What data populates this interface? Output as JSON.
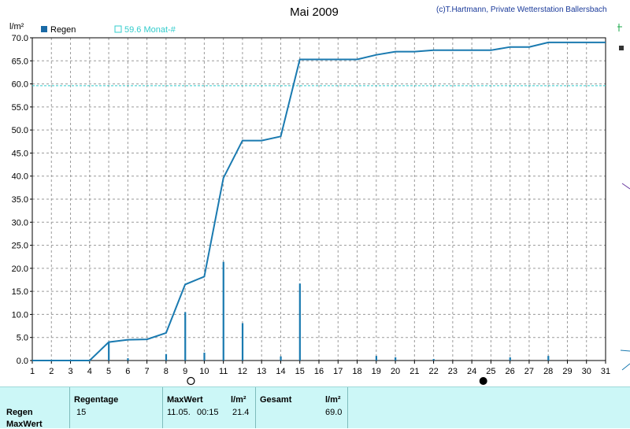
{
  "chart_data": {
    "type": "line",
    "title": "Mai 2009",
    "copyright": "(c)T.Hartmann, Private Wetterstation Ballersbach",
    "ylabel": "l/m²",
    "xlim": [
      1,
      31
    ],
    "ylim": [
      0,
      70
    ],
    "x_ticks": [
      1,
      2,
      3,
      4,
      5,
      6,
      7,
      8,
      9,
      10,
      11,
      12,
      13,
      14,
      15,
      16,
      17,
      18,
      19,
      20,
      21,
      22,
      23,
      24,
      25,
      26,
      27,
      28,
      29,
      30,
      31
    ],
    "y_ticks": [
      "0.0",
      "5.0",
      "10.0",
      "15.0",
      "20.0",
      "25.0",
      "30.0",
      "35.0",
      "40.0",
      "45.0",
      "50.0",
      "55.0",
      "60.0",
      "65.0",
      "70.0"
    ],
    "grid": true,
    "legend": [
      {
        "name": "Regen",
        "color": "#1a6aa6"
      },
      {
        "name": "59.6 Monat-#",
        "color": "#33cccc"
      }
    ],
    "reference_line": {
      "value": 59.6,
      "color": "#33cccc"
    },
    "cumulative_series": {
      "name": "Regen",
      "color": "#1a7ab0",
      "points": [
        [
          1,
          0
        ],
        [
          2,
          0
        ],
        [
          3,
          0
        ],
        [
          4,
          0
        ],
        [
          5,
          4.0
        ],
        [
          6,
          4.5
        ],
        [
          7,
          4.6
        ],
        [
          8,
          6.0
        ],
        [
          9,
          16.5
        ],
        [
          10,
          18.2
        ],
        [
          11,
          39.6
        ],
        [
          12,
          47.7
        ],
        [
          13,
          47.7
        ],
        [
          14,
          48.6
        ],
        [
          15,
          65.3
        ],
        [
          16,
          65.3
        ],
        [
          17,
          65.3
        ],
        [
          18,
          65.3
        ],
        [
          19,
          66.3
        ],
        [
          20,
          67.0
        ],
        [
          21,
          67.0
        ],
        [
          22,
          67.3
        ],
        [
          23,
          67.3
        ],
        [
          24,
          67.3
        ],
        [
          25,
          67.3
        ],
        [
          26,
          68.0
        ],
        [
          27,
          68.0
        ],
        [
          28,
          69.0
        ],
        [
          29,
          69.0
        ],
        [
          30,
          69.0
        ],
        [
          31,
          69.0
        ]
      ]
    },
    "daily_bars": {
      "color": "#1a7ab0",
      "points": [
        [
          5,
          4.0
        ],
        [
          6,
          0.5
        ],
        [
          8,
          1.4
        ],
        [
          9,
          10.5
        ],
        [
          10,
          1.7
        ],
        [
          11,
          21.4
        ],
        [
          12,
          8.1
        ],
        [
          14,
          0.9
        ],
        [
          15,
          16.7
        ],
        [
          19,
          1.0
        ],
        [
          20,
          0.7
        ],
        [
          22,
          0.3
        ],
        [
          26,
          0.7
        ],
        [
          28,
          1.0
        ]
      ]
    },
    "moon_phases": [
      {
        "day": 9.3,
        "phase": "full",
        "symbol": "○"
      },
      {
        "day": 24.6,
        "phase": "new",
        "symbol": "●"
      }
    ]
  },
  "stats": {
    "row_labels": {
      "regen": "Regen",
      "maxwert": "MaxWert"
    },
    "regentage_header": "Regentage",
    "regentage_value": "15",
    "maxwert_header": "MaxWert",
    "maxwert_unit": "l/m²",
    "maxwert_date": "11.05.",
    "maxwert_time": "00:15",
    "maxwert_value": "21.4",
    "gesamt_header": "Gesamt",
    "gesamt_unit": "l/m²",
    "gesamt_value": "69.0"
  }
}
